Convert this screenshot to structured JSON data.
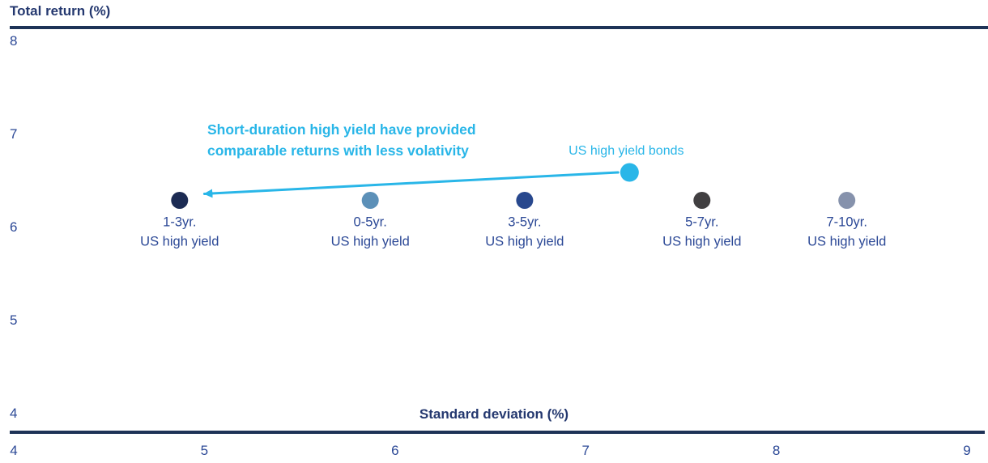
{
  "chart": {
    "y_axis_title": "Total return (%)",
    "x_axis_title": "Standard deviation (%)",
    "annotation": {
      "line1": "Short-duration high yield have provided",
      "line2": "comparable returns with less volativity"
    },
    "colors": {
      "navy_text": "#2b4896",
      "title_navy": "#24386f",
      "axis_line": "#1e3357",
      "accent_cyan": "#29b6e8"
    }
  },
  "chart_data": {
    "type": "scatter",
    "title": "",
    "xlabel": "Standard deviation (%)",
    "ylabel": "Total return (%)",
    "xlim": [
      4,
      9
    ],
    "ylim": [
      4,
      8
    ],
    "xticks": [
      4,
      5,
      6,
      7,
      8,
      9
    ],
    "yticks": [
      8,
      7,
      6,
      5,
      4
    ],
    "grid": false,
    "legend_position": "none",
    "points": [
      {
        "name": "1-3yr. US high yield",
        "label_lines": [
          "1-3yr.",
          "US high yield"
        ],
        "label_position": "below",
        "x": 4.87,
        "y": 6.3,
        "color": "#1c2b53"
      },
      {
        "name": "0-5yr. US high yield",
        "label_lines": [
          "0-5yr.",
          "US high yield"
        ],
        "label_position": "below",
        "x": 5.87,
        "y": 6.3,
        "color": "#5c90b8"
      },
      {
        "name": "3-5yr. US high yield",
        "label_lines": [
          "3-5yr.",
          "US high yield"
        ],
        "label_position": "below",
        "x": 6.68,
        "y": 6.3,
        "color": "#28488e"
      },
      {
        "name": "US high yield bonds",
        "label_lines": [
          "US high yield bonds"
        ],
        "label_position": "above",
        "x": 7.23,
        "y": 6.6,
        "color": "#29b6e8",
        "radius": 11.5
      },
      {
        "name": "5-7yr. US high yield",
        "label_lines": [
          "5-7yr.",
          "US high yield"
        ],
        "label_position": "below",
        "x": 7.61,
        "y": 6.3,
        "color": "#413f41"
      },
      {
        "name": "7-10yr. US high yield",
        "label_lines": [
          "7-10yr.",
          "US high yield"
        ],
        "label_position": "below",
        "x": 8.37,
        "y": 6.3,
        "color": "#8692ac"
      }
    ],
    "arrow": {
      "from": {
        "x": 7.17,
        "y": 6.6
      },
      "to": {
        "x": 5.0,
        "y": 6.37
      },
      "color": "#29b6e8"
    }
  }
}
